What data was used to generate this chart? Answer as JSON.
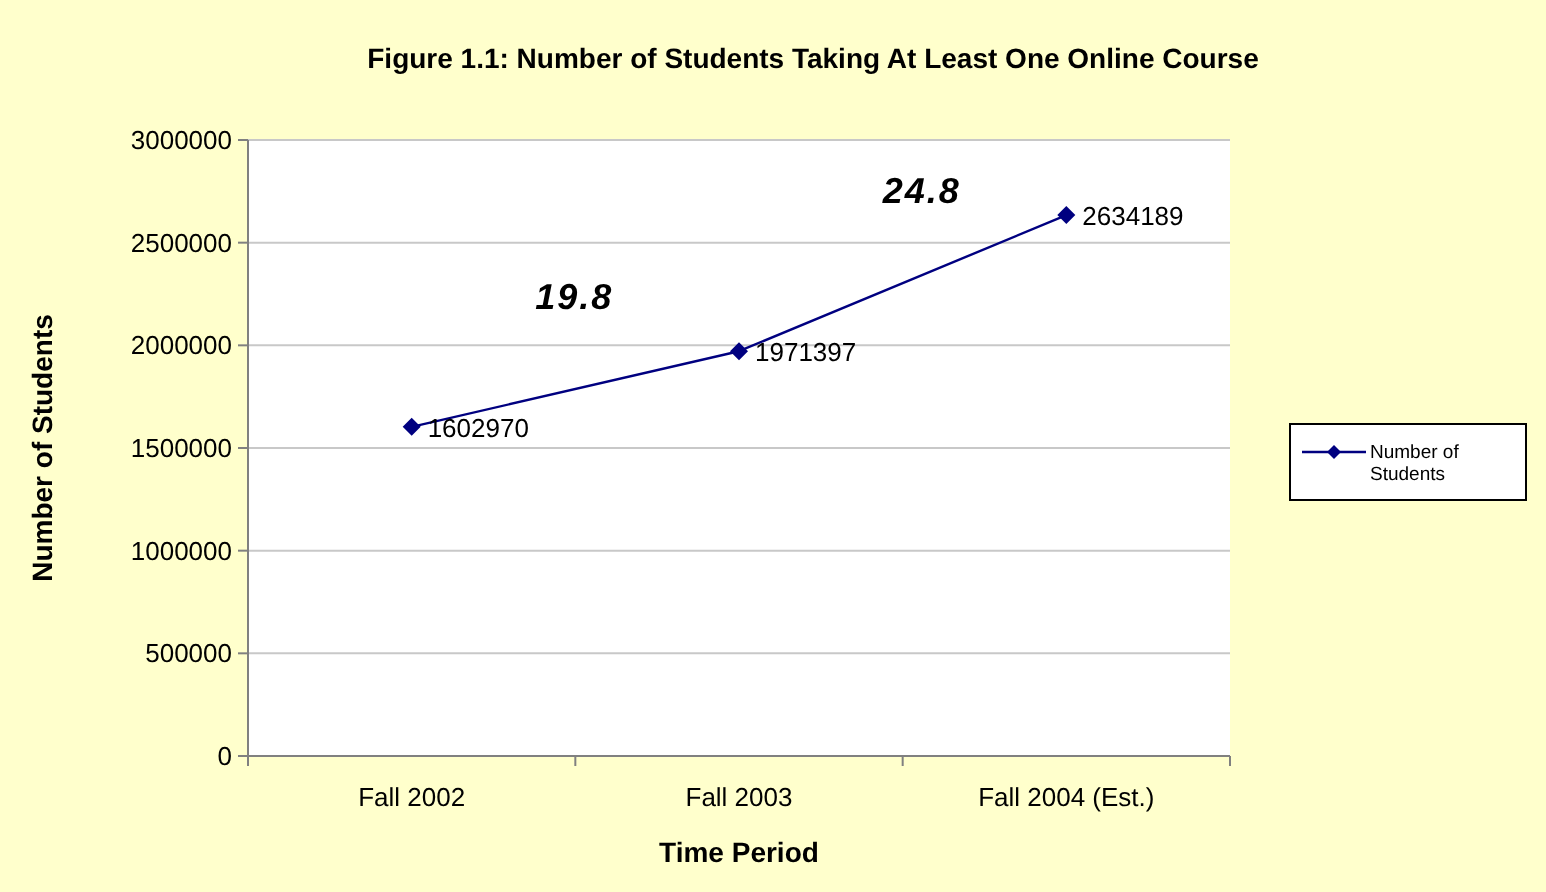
{
  "chart_data": {
    "type": "line",
    "title": "Figure 1.1:  Number of Students Taking At Least One Online Course",
    "xlabel": "Time Period",
    "ylabel": "Number of Students",
    "categories": [
      "Fall 2002",
      "Fall 2003",
      "Fall 2004 (Est.)"
    ],
    "series": [
      {
        "name": "Number of Students",
        "color": "#000080",
        "values": [
          1602970,
          1971397,
          2634189
        ]
      }
    ],
    "ylim": [
      0,
      3000000
    ],
    "yticks": [
      0,
      500000,
      1000000,
      1500000,
      2000000,
      2500000,
      3000000
    ],
    "grid": "y",
    "legend": "right",
    "marker": "diamond",
    "line_style": "solid",
    "data_labels": true,
    "annotations": [
      "19.8",
      "24.8"
    ]
  }
}
